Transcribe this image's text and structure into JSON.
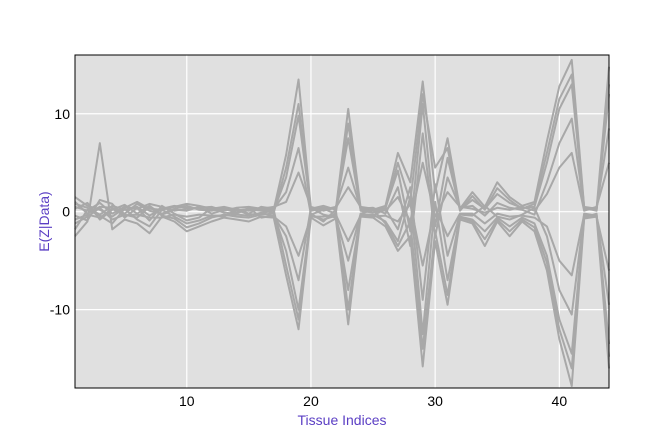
{
  "colors": {
    "panel_background": "#e0e0e0",
    "grid": "#ffffff",
    "series_line": "#a8a8a8",
    "axis_label": "#5b3fc4",
    "frame": "#000000"
  },
  "chart_data": {
    "type": "line",
    "xlabel": "Tissue Indices",
    "ylabel": "E(Z|Data)",
    "xlim": [
      1,
      44
    ],
    "ylim": [
      -18,
      16
    ],
    "xticks": [
      10,
      20,
      30,
      40
    ],
    "yticks": [
      10,
      0,
      -10
    ],
    "grid": true,
    "legend": "none",
    "x": [
      1,
      2,
      3,
      4,
      5,
      6,
      7,
      8,
      9,
      10,
      11,
      12,
      13,
      14,
      15,
      16,
      17,
      18,
      19,
      20,
      21,
      22,
      23,
      24,
      25,
      26,
      27,
      28,
      29,
      30,
      31,
      32,
      33,
      34,
      35,
      36,
      37,
      38,
      39,
      40,
      41,
      42,
      43,
      44
    ],
    "series": [
      {
        "values": [
          1.5,
          0.6,
          0.2,
          -0.5,
          0.4,
          1.0,
          0.3,
          0.2,
          0.5,
          0.8,
          0.6,
          0.3,
          0.5,
          0.2,
          0.1,
          0.4,
          0.2,
          5.8,
          13.5,
          0.3,
          0.6,
          0.2,
          10.5,
          0.4,
          0.2,
          0.6,
          6.0,
          3.0,
          13.3,
          2.0,
          7.5,
          0.3,
          2.0,
          0.5,
          3.0,
          1.5,
          0.6,
          1.0,
          7.2,
          12.8,
          15.5,
          0.5,
          0.3,
          14.8
        ]
      },
      {
        "values": [
          -2.5,
          -1.0,
          7.0,
          -1.8,
          -0.8,
          -1.2,
          -2.2,
          -0.5,
          -1.0,
          -2.0,
          -1.5,
          -1.0,
          -0.6,
          -0.8,
          -1.0,
          -0.5,
          -0.6,
          -6.5,
          -12.0,
          -0.6,
          -1.4,
          -0.7,
          -11.5,
          -0.5,
          -0.6,
          -1.5,
          -4.0,
          -2.5,
          -15.8,
          -3.0,
          -9.5,
          -0.8,
          -1.2,
          -3.5,
          -1.0,
          -2.5,
          -1.0,
          -2.0,
          -6.0,
          -13.0,
          -17.8,
          -0.7,
          -0.5,
          -16.0
        ]
      },
      {
        "values": [
          0.8,
          0.4,
          -0.3,
          0.6,
          0.2,
          0.5,
          -0.4,
          0.3,
          0.6,
          0.4,
          0.3,
          0.2,
          0.4,
          0.1,
          0.3,
          0.2,
          0.1,
          3.5,
          9.8,
          0.2,
          0.4,
          0.3,
          7.5,
          0.2,
          0.1,
          0.4,
          4.2,
          -2.0,
          11.0,
          -1.5,
          5.5,
          0.2,
          1.2,
          0.3,
          1.8,
          0.9,
          0.4,
          0.5,
          5.0,
          10.5,
          13.0,
          0.3,
          0.2,
          12.0
        ]
      },
      {
        "values": [
          -1.2,
          -0.5,
          0.4,
          -0.8,
          -0.3,
          -0.6,
          0.5,
          -0.4,
          -0.7,
          -1.6,
          -1.2,
          -0.6,
          -0.3,
          -0.5,
          -0.6,
          -0.3,
          -0.2,
          -4.0,
          -10.0,
          -0.4,
          -0.8,
          -0.4,
          -8.0,
          -0.3,
          -0.3,
          -1.0,
          -3.0,
          1.5,
          -12.5,
          1.0,
          -7.0,
          -0.5,
          -0.8,
          -2.0,
          -0.6,
          -1.5,
          -0.6,
          -1.2,
          -4.5,
          -11.0,
          -14.5,
          -0.4,
          -0.3,
          -13.5
        ]
      },
      {
        "values": [
          0.3,
          0.9,
          -0.8,
          0.2,
          0.7,
          -0.2,
          0.6,
          -0.3,
          0.2,
          0.1,
          0.5,
          -0.2,
          0.2,
          0.3,
          -0.2,
          0.5,
          0.3,
          2.0,
          6.5,
          -0.3,
          0.2,
          0.5,
          4.5,
          0.3,
          0.4,
          -0.2,
          2.5,
          -3.5,
          8.0,
          -2.5,
          3.5,
          0.4,
          0.6,
          -0.4,
          0.9,
          0.4,
          0.2,
          -0.3,
          3.0,
          7.0,
          9.5,
          0.2,
          0.4,
          8.5
        ]
      },
      {
        "values": [
          -0.4,
          -0.9,
          1.2,
          0.8,
          -0.6,
          0.4,
          -0.9,
          0.6,
          -0.2,
          -0.9,
          -0.6,
          0.4,
          -0.1,
          -0.2,
          0.4,
          -0.6,
          -0.4,
          -2.5,
          -7.0,
          0.4,
          -0.3,
          -0.6,
          -5.0,
          -0.2,
          -0.4,
          0.3,
          -1.8,
          2.5,
          -9.0,
          2.8,
          -4.5,
          -0.3,
          -0.4,
          0.6,
          -0.5,
          -0.8,
          -0.3,
          0.4,
          -2.5,
          -8.0,
          -10.5,
          -0.2,
          -0.4,
          -9.5
        ]
      },
      {
        "values": [
          1.0,
          -0.2,
          0.5,
          0.4,
          -0.2,
          0.8,
          0.1,
          -0.2,
          0.3,
          0.6,
          0.2,
          0.1,
          0.3,
          -0.1,
          0.2,
          0.1,
          -0.1,
          4.5,
          11.0,
          0.1,
          0.3,
          -0.2,
          9.0,
          0.1,
          -0.1,
          0.3,
          5.0,
          1.0,
          12.0,
          4.5,
          6.5,
          0.1,
          1.6,
          0.2,
          2.4,
          1.2,
          0.3,
          0.8,
          6.0,
          11.5,
          14.0,
          0.4,
          0.1,
          13.0
        ]
      },
      {
        "values": [
          -1.8,
          0.2,
          -0.4,
          -1.2,
          0.3,
          -0.8,
          -1.5,
          0.2,
          -0.5,
          -1.2,
          -0.9,
          -0.4,
          -0.5,
          0.2,
          -0.3,
          -0.2,
          0.2,
          -5.5,
          -11.0,
          -0.2,
          -1.0,
          0.2,
          -10.0,
          -0.2,
          0.2,
          -1.2,
          -3.5,
          -1.0,
          -14.0,
          -2.0,
          -8.5,
          -0.6,
          -1.0,
          -2.8,
          -0.8,
          -2.0,
          -0.8,
          -1.6,
          -5.2,
          -12.0,
          -16.0,
          -0.6,
          -0.2,
          -14.8
        ]
      },
      {
        "values": [
          0.5,
          0.1,
          0.9,
          -0.2,
          0.5,
          0.3,
          0.8,
          0.5,
          0.1,
          0.3,
          0.4,
          0.5,
          0.1,
          0.4,
          0.5,
          0.3,
          0.5,
          1.0,
          4.0,
          0.5,
          0.1,
          0.4,
          2.5,
          0.5,
          0.3,
          0.1,
          1.5,
          -1.0,
          5.0,
          -0.5,
          2.0,
          0.5,
          0.3,
          -0.1,
          0.4,
          0.2,
          0.5,
          0.1,
          1.8,
          4.5,
          6.0,
          0.1,
          0.5,
          5.0
        ]
      },
      {
        "values": [
          -0.8,
          -0.3,
          -0.6,
          0.3,
          -0.4,
          -0.3,
          -0.6,
          -0.6,
          -0.3,
          -0.5,
          -0.3,
          -0.4,
          -0.4,
          -0.3,
          -0.4,
          -0.1,
          -0.5,
          -1.5,
          -4.5,
          -0.5,
          -0.5,
          -0.3,
          -3.0,
          -0.4,
          -0.5,
          -0.4,
          -1.0,
          0.8,
          -5.5,
          0.5,
          -2.5,
          -0.2,
          -0.2,
          -1.2,
          -0.2,
          -0.5,
          -0.4,
          -0.6,
          -1.5,
          -5.0,
          -6.5,
          -0.3,
          -0.5,
          -6.0
        ]
      }
    ]
  }
}
